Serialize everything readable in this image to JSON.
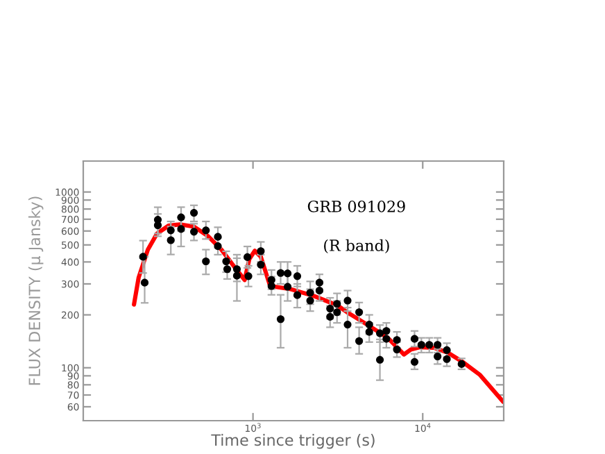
{
  "chart_data": {
    "type": "scatter",
    "xlabel": "Time since trigger (s)",
    "ylabel": "FLUX DENSITY (μ Jansky)",
    "annotations": [
      "GRB 091029",
      "(R band)"
    ],
    "log": "xy",
    "grid": false,
    "legend": false,
    "marker": "circle",
    "xlim": [
      100,
      30000
    ],
    "ylim": [
      50,
      1500
    ],
    "xticks": [
      {
        "value": 1000,
        "label": "10$^{3}$"
      },
      {
        "value": 10000,
        "label": "10$^{4}$"
      }
    ],
    "yticks": [
      60,
      70,
      80,
      90,
      100,
      200,
      300,
      400,
      500,
      600,
      700,
      800,
      900,
      1000
    ],
    "series": [
      {
        "color": "#000000",
        "x": [
          225,
          230,
          275,
          275,
          328,
          328,
          377,
          377,
          449,
          449,
          528,
          528,
          621,
          621,
          695,
          705,
          804,
          804,
          927,
          940,
          1112,
          1112,
          1285,
          1285,
          1455,
          1455,
          1600,
          1600,
          1824,
          1824,
          2173,
          2173,
          2464,
          2464,
          2846,
          2846,
          3127,
          3127,
          3609,
          3609,
          4220,
          4220,
          4842,
          4842,
          5595,
          5595,
          6107,
          6107,
          7047,
          7047,
          8950,
          8950,
          9820,
          10930,
          12230,
          12230,
          13870,
          13870,
          16940
        ],
        "values": [
          428,
          305,
          695,
          647,
          605,
          532,
          717,
          616,
          761,
          594,
          605,
          403,
          556,
          492,
          403,
          364,
          334,
          364,
          426,
          332,
          461,
          386,
          316,
          292,
          346,
          189,
          344,
          289,
          332,
          259,
          267,
          241,
          305,
          275,
          217,
          195,
          231,
          207,
          241,
          176,
          207,
          142,
          176,
          160,
          157,
          111,
          162,
          146,
          144,
          127,
          146,
          108,
          135,
          135,
          135,
          116,
          126,
          112,
          105
        ],
        "errors": [
          [
            346,
            529
          ],
          [
            234,
            428
          ],
          [
            580,
            819
          ],
          [
            560,
            750
          ],
          [
            530,
            680
          ],
          [
            441,
            635
          ],
          [
            600,
            820
          ],
          [
            490,
            720
          ],
          [
            680,
            840
          ],
          [
            530,
            660
          ],
          [
            540,
            680
          ],
          [
            340,
            470
          ],
          [
            480,
            630
          ],
          [
            440,
            550
          ],
          [
            350,
            460
          ],
          [
            320,
            410
          ],
          [
            240,
            440
          ],
          [
            310,
            420
          ],
          [
            370,
            490
          ],
          [
            290,
            380
          ],
          [
            400,
            520
          ],
          [
            340,
            440
          ],
          [
            280,
            360
          ],
          [
            260,
            330
          ],
          [
            300,
            400
          ],
          [
            130,
            260
          ],
          [
            290,
            400
          ],
          [
            240,
            340
          ],
          [
            290,
            380
          ],
          [
            220,
            300
          ],
          [
            230,
            310
          ],
          [
            210,
            280
          ],
          [
            270,
            340
          ],
          [
            240,
            310
          ],
          [
            190,
            250
          ],
          [
            170,
            225
          ],
          [
            200,
            265
          ],
          [
            180,
            240
          ],
          [
            210,
            275
          ],
          [
            130,
            220
          ],
          [
            180,
            235
          ],
          [
            120,
            170
          ],
          [
            155,
            200
          ],
          [
            140,
            180
          ],
          [
            140,
            175
          ],
          [
            85,
            145
          ],
          [
            145,
            180
          ],
          [
            130,
            165
          ],
          [
            130,
            160
          ],
          [
            115,
            140
          ],
          [
            132,
            162
          ],
          [
            98,
            120
          ],
          [
            122,
            148
          ],
          [
            122,
            148
          ],
          [
            122,
            148
          ],
          [
            105,
            128
          ],
          [
            115,
            138
          ],
          [
            102,
            124
          ],
          [
            98,
            113
          ]
        ]
      },
      {
        "type": "line",
        "color": "#ff0000",
        "line_style": "solid",
        "marker": "none",
        "x": [
          199,
          212,
          240,
          272,
          318,
          372,
          449,
          542,
          653,
          788,
          893,
          951,
          1025,
          1112,
          1261,
          1671,
          2285,
          3127,
          3589,
          4842,
          6223,
          7047,
          7745,
          8511,
          9636,
          11640,
          14030,
          16940,
          21770,
          29790
        ],
        "values": [
          229,
          326,
          469,
          580,
          643,
          654,
          635,
          562,
          469,
          368,
          316,
          415,
          463,
          428,
          292,
          280,
          256,
          227,
          207,
          173,
          148,
          131,
          119,
          127,
          131,
          130,
          122,
          109,
          91,
          64
        ]
      }
    ]
  }
}
